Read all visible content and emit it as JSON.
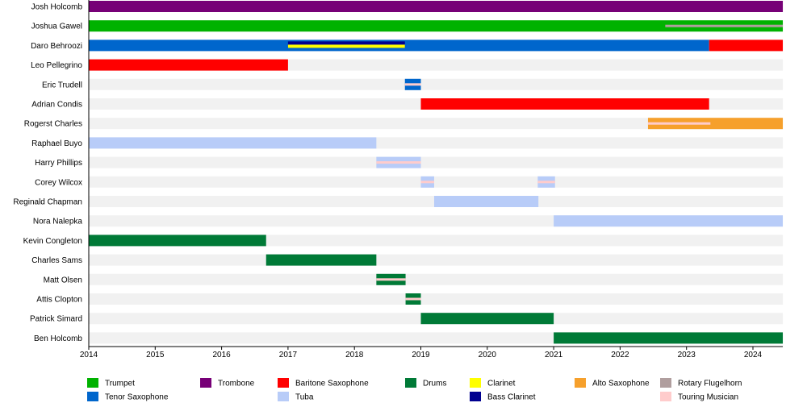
{
  "chart_data": {
    "type": "timeline",
    "xlim": [
      2014,
      2024.45
    ],
    "x_ticks": [
      "2014",
      "2015",
      "2016",
      "2017",
      "2018",
      "2019",
      "2020",
      "2021",
      "2022",
      "2023",
      "2024"
    ],
    "grid": false,
    "legend_placement": "bottom",
    "instruments": {
      "trumpet": {
        "label": "Trumpet",
        "color": "#00b200"
      },
      "trombone": {
        "label": "Trombone",
        "color": "#770077"
      },
      "baritone": {
        "label": "Baritone Saxophone",
        "color": "#ff0000"
      },
      "drums": {
        "label": "Drums",
        "color": "#007a37"
      },
      "clarinet": {
        "label": "Clarinet",
        "color": "#ffff00"
      },
      "alto": {
        "label": "Alto Saxophone",
        "color": "#f6a02c"
      },
      "flugelhorn": {
        "label": "Rotary Flugelhorn",
        "color": "#b09e9e"
      },
      "tenor": {
        "label": "Tenor Saxophone",
        "color": "#0066cc"
      },
      "tuba": {
        "label": "Tuba",
        "color": "#b8ccf8"
      },
      "bassclarinet": {
        "label": "Bass Clarinet",
        "color": "#000090"
      },
      "touring": {
        "label": "Touring Musician",
        "color": "#ffcccc"
      }
    },
    "legend_order": [
      [
        "trumpet",
        "trombone",
        "baritone",
        "drums",
        "clarinet",
        "alto",
        "flugelhorn"
      ],
      [
        "tenor",
        null,
        "tuba",
        null,
        "bassclarinet",
        null,
        "touring"
      ]
    ],
    "members": [
      {
        "name": "Josh Holcomb",
        "bars": [
          {
            "start": 2014,
            "end": 2024.45,
            "instrument": "trombone"
          }
        ]
      },
      {
        "name": "Joshua Gawel",
        "bars": [
          {
            "start": 2014,
            "end": 2024.45,
            "instrument": "trumpet"
          }
        ],
        "stripes": [
          {
            "start": 2022.68,
            "end": 2024.45,
            "instrument": "flugelhorn"
          }
        ]
      },
      {
        "name": "Daro Behroozi",
        "bars": [
          {
            "start": 2014,
            "end": 2023.34,
            "instrument": "tenor"
          },
          {
            "start": 2023.34,
            "end": 2024.45,
            "instrument": "baritone"
          }
        ],
        "stripes": [
          {
            "start": 2017.0,
            "end": 2018.76,
            "instrument": "bassclarinet"
          },
          {
            "start": 2017.0,
            "end": 2018.76,
            "instrument": "clarinet"
          }
        ]
      },
      {
        "name": "Leo Pellegrino",
        "bars": [
          {
            "start": 2014,
            "end": 2017.0,
            "instrument": "baritone"
          }
        ]
      },
      {
        "name": "Eric Trudell",
        "bars": [
          {
            "start": 2018.76,
            "end": 2019.0,
            "instrument": "tenor"
          }
        ],
        "stripes": [
          {
            "start": 2018.76,
            "end": 2019.0,
            "instrument": "touring"
          }
        ]
      },
      {
        "name": "Adrian Condis",
        "bars": [
          {
            "start": 2019.0,
            "end": 2023.34,
            "instrument": "baritone"
          }
        ]
      },
      {
        "name": "Rogerst Charles",
        "bars": [
          {
            "start": 2022.42,
            "end": 2024.45,
            "instrument": "alto"
          }
        ],
        "stripes": [
          {
            "start": 2022.42,
            "end": 2023.36,
            "instrument": "touring"
          }
        ]
      },
      {
        "name": "Raphael Buyo",
        "bars": [
          {
            "start": 2014,
            "end": 2018.33,
            "instrument": "tuba"
          }
        ]
      },
      {
        "name": "Harry Phillips",
        "bars": [
          {
            "start": 2018.33,
            "end": 2019.0,
            "instrument": "tuba"
          }
        ],
        "stripes": [
          {
            "start": 2018.33,
            "end": 2019.0,
            "instrument": "touring"
          }
        ]
      },
      {
        "name": "Corey Wilcox",
        "bars": [
          {
            "start": 2019.0,
            "end": 2019.2,
            "instrument": "tuba"
          },
          {
            "start": 2020.76,
            "end": 2021.02,
            "instrument": "tuba"
          }
        ],
        "stripes": [
          {
            "start": 2019.0,
            "end": 2019.2,
            "instrument": "touring"
          },
          {
            "start": 2020.76,
            "end": 2021.02,
            "instrument": "touring"
          }
        ]
      },
      {
        "name": "Reginald Chapman",
        "bars": [
          {
            "start": 2019.2,
            "end": 2020.77,
            "instrument": "tuba"
          }
        ]
      },
      {
        "name": "Nora Nalepka",
        "bars": [
          {
            "start": 2021.0,
            "end": 2024.45,
            "instrument": "tuba"
          }
        ]
      },
      {
        "name": "Kevin Congleton",
        "bars": [
          {
            "start": 2014,
            "end": 2016.67,
            "instrument": "drums"
          }
        ]
      },
      {
        "name": "Charles Sams",
        "bars": [
          {
            "start": 2016.67,
            "end": 2018.33,
            "instrument": "drums"
          }
        ]
      },
      {
        "name": "Matt Olsen",
        "bars": [
          {
            "start": 2018.33,
            "end": 2018.77,
            "instrument": "drums"
          }
        ],
        "stripes": [
          {
            "start": 2018.33,
            "end": 2018.77,
            "instrument": "touring"
          }
        ]
      },
      {
        "name": "Attis Clopton",
        "bars": [
          {
            "start": 2018.77,
            "end": 2019.0,
            "instrument": "drums"
          }
        ],
        "stripes": [
          {
            "start": 2018.77,
            "end": 2019.0,
            "instrument": "touring"
          }
        ]
      },
      {
        "name": "Patrick Simard",
        "bars": [
          {
            "start": 2019.0,
            "end": 2021.0,
            "instrument": "drums"
          }
        ]
      },
      {
        "name": "Ben Holcomb",
        "bars": [
          {
            "start": 2021.0,
            "end": 2024.45,
            "instrument": "drums"
          }
        ]
      }
    ]
  }
}
